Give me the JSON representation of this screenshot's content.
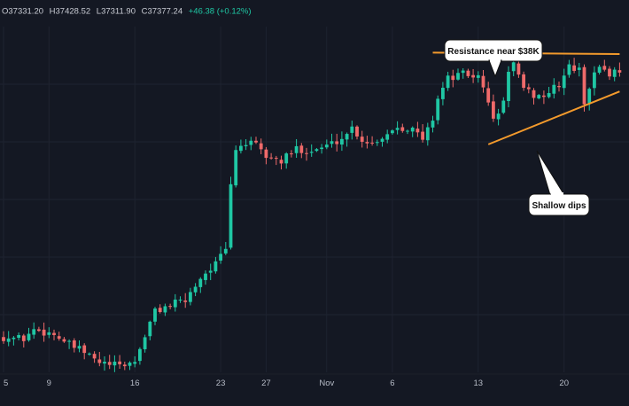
{
  "ohlc_bar": {
    "open": "O37331.20",
    "high": "H37428.52",
    "low": "L37311.90",
    "close": "C37377.24",
    "change": "+46.38 (+0.12%)"
  },
  "annotations": {
    "resistance": "Resistance near $38K",
    "dips": "Shallow dips"
  },
  "colors": {
    "background": "#141823",
    "up": "#1fc7a4",
    "down": "#ef6a6a",
    "trendline": "#f39a2c",
    "grid": "#1e2330"
  },
  "chart_data": {
    "type": "candlestick",
    "x_ticks": [
      {
        "label": "5",
        "index": 0
      },
      {
        "label": "9",
        "index": 9
      },
      {
        "label": "16",
        "index": 26
      },
      {
        "label": "23",
        "index": 43
      },
      {
        "label": "27",
        "index": 52
      },
      {
        "label": "Nov",
        "index": 64
      },
      {
        "label": "6",
        "index": 77
      },
      {
        "label": "13",
        "index": 94
      },
      {
        "label": "20",
        "index": 111
      }
    ],
    "ylim": [
      27500,
      38800
    ],
    "trendlines": [
      {
        "name": "resistance",
        "from": {
          "index": 85,
          "price": 37950
        },
        "to": {
          "index": 122,
          "price": 37900
        }
      },
      {
        "name": "support",
        "from": {
          "index": 96,
          "price": 34950
        },
        "to": {
          "index": 122,
          "price": 36680
        }
      }
    ],
    "close_path": [
      [
        0,
        28650
      ],
      [
        4,
        28600
      ],
      [
        6,
        28900
      ],
      [
        10,
        28750
      ],
      [
        13,
        28400
      ],
      [
        16,
        28150
      ],
      [
        19,
        27800
      ],
      [
        23,
        27700
      ],
      [
        26,
        27850
      ],
      [
        28,
        28700
      ],
      [
        30,
        29500
      ],
      [
        33,
        29700
      ],
      [
        36,
        29850
      ],
      [
        39,
        30600
      ],
      [
        42,
        31050
      ],
      [
        44,
        31500
      ],
      [
        45,
        33600
      ],
      [
        46,
        34800
      ],
      [
        48,
        35000
      ],
      [
        50,
        34900
      ],
      [
        52,
        34550
      ],
      [
        55,
        34400
      ],
      [
        58,
        34800
      ],
      [
        61,
        34750
      ],
      [
        64,
        34900
      ],
      [
        67,
        35150
      ],
      [
        69,
        35500
      ],
      [
        71,
        35100
      ],
      [
        73,
        35000
      ],
      [
        75,
        35200
      ],
      [
        78,
        35550
      ],
      [
        81,
        35450
      ],
      [
        83,
        35100
      ],
      [
        85,
        35800
      ],
      [
        86,
        36500
      ],
      [
        88,
        37100
      ],
      [
        91,
        37250
      ],
      [
        94,
        37150
      ],
      [
        96,
        36400
      ],
      [
        97,
        35700
      ],
      [
        99,
        36300
      ],
      [
        100,
        37400
      ],
      [
        101,
        37600
      ],
      [
        103,
        36700
      ],
      [
        106,
        36500
      ],
      [
        108,
        36650
      ],
      [
        110,
        36900
      ],
      [
        112,
        37500
      ],
      [
        114,
        37350
      ],
      [
        115,
        36350
      ],
      [
        116,
        36850
      ],
      [
        118,
        37550
      ],
      [
        120,
        37250
      ],
      [
        122,
        37400
      ]
    ],
    "candle_count": 123
  }
}
